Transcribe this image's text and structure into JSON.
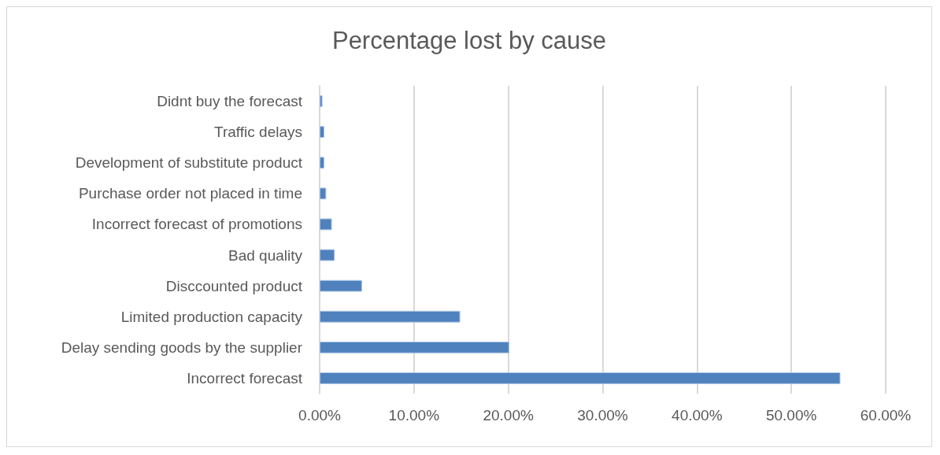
{
  "chart_data": {
    "type": "bar",
    "orientation": "horizontal",
    "title": "Percentage lost by cause",
    "categories": [
      "Didnt buy the forecast",
      "Traffic delays",
      "Development of substitute product",
      "Purchase order not placed in time",
      "Incorrect forecast of promotions",
      "Bad quality",
      "Disccounted product",
      "Limited production capacity",
      "Delay sending goods by the supplier",
      "Incorrect forecast"
    ],
    "values": [
      0.3,
      0.5,
      0.5,
      0.7,
      1.3,
      1.6,
      4.5,
      14.9,
      20.1,
      55.2
    ],
    "color": "#4f81bd",
    "xlim": [
      0,
      60
    ],
    "xticks": [
      {
        "value": 0,
        "label": "0.00%"
      },
      {
        "value": 10,
        "label": "10.00%"
      },
      {
        "value": 20,
        "label": "20.00%"
      },
      {
        "value": 30,
        "label": "30.00%"
      },
      {
        "value": 40,
        "label": "40.00%"
      },
      {
        "value": 50,
        "label": "50.00%"
      },
      {
        "value": 60,
        "label": "60.00%"
      }
    ],
    "grid": "x"
  }
}
